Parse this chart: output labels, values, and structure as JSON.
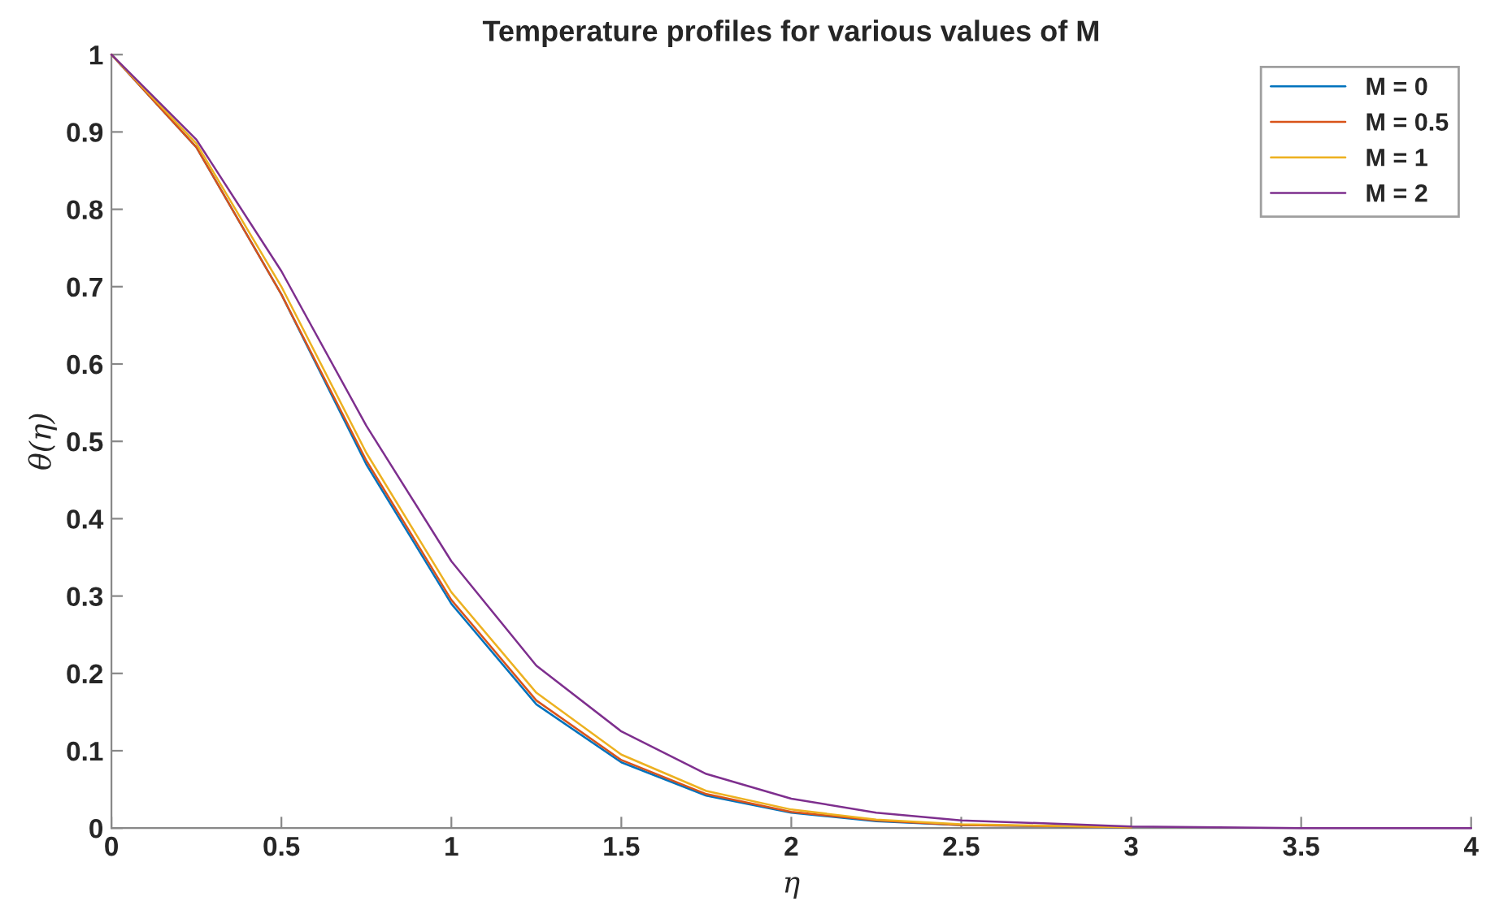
{
  "chart_data": {
    "type": "line",
    "title": "Temperature profiles for various values of M",
    "xlabel": "η",
    "ylabel": "θ(η)",
    "x": [
      0,
      0.25,
      0.5,
      0.75,
      1,
      1.25,
      1.5,
      1.75,
      2,
      2.25,
      2.5,
      3,
      3.5,
      4
    ],
    "series": [
      {
        "name": "M = 0",
        "color": "#0072bd",
        "values": [
          1,
          0.88,
          0.69,
          0.47,
          0.29,
          0.16,
          0.085,
          0.042,
          0.02,
          0.009,
          0.004,
          0.001,
          null,
          null
        ]
      },
      {
        "name": "M = 0.5",
        "color": "#d95319",
        "values": [
          1,
          0.88,
          0.69,
          0.475,
          0.295,
          0.165,
          0.088,
          0.044,
          0.021,
          0.01,
          0.004,
          0.001,
          null,
          null
        ]
      },
      {
        "name": "M = 1",
        "color": "#edb120",
        "values": [
          1,
          0.885,
          0.7,
          0.485,
          0.305,
          0.175,
          0.095,
          0.048,
          0.024,
          0.011,
          0.005,
          0.001,
          null,
          null
        ]
      },
      {
        "name": "M = 2",
        "color": "#7e2f8e",
        "values": [
          1,
          0.89,
          0.72,
          0.52,
          0.345,
          0.21,
          0.125,
          0.07,
          0.038,
          0.02,
          0.01,
          0.002,
          0,
          0
        ]
      }
    ],
    "xlim": [
      0,
      4
    ],
    "xticks": [
      0,
      0.5,
      1,
      1.5,
      2,
      2.5,
      3,
      3.5,
      4
    ],
    "ylim": [
      0,
      1
    ],
    "yticks": [
      0,
      0.1,
      0.2,
      0.3,
      0.4,
      0.5,
      0.6,
      0.7,
      0.8,
      0.9,
      1
    ],
    "legend": "top right",
    "grid": false,
    "line_style": "solid",
    "marker": "none"
  }
}
